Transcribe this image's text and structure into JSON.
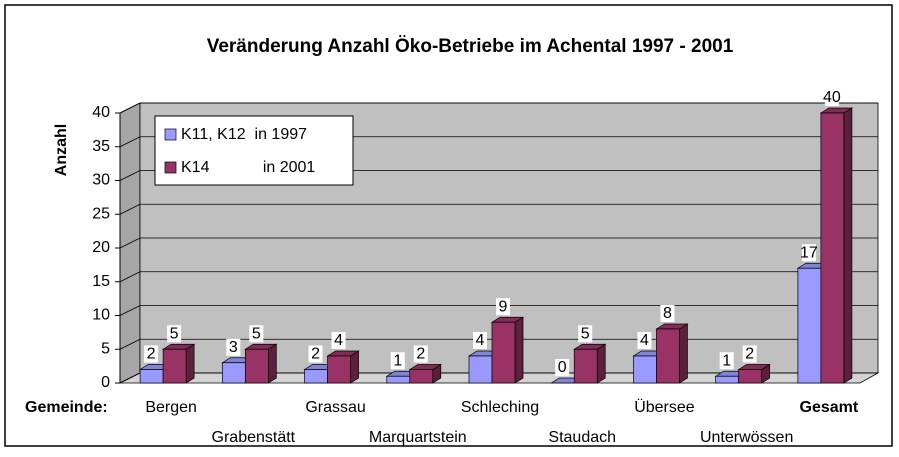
{
  "chart_data": {
    "type": "bar3d",
    "title": "Veränderung Anzahl Öko-Betriebe im Achental 1997 - 2001",
    "y_label": "Anzahl",
    "x_label": "Gemeinde:",
    "categories": [
      "Bergen",
      "Grabenstätt",
      "Grassau",
      "Marquartstein",
      "Schleching",
      "Staudach",
      "Übersee",
      "Unterwössen",
      "Gesamt"
    ],
    "series": [
      {
        "name": "K11, K12  in 1997",
        "color": "#9999ff",
        "values": [
          2,
          3,
          2,
          1,
          4,
          0,
          4,
          1,
          17
        ]
      },
      {
        "name": "K14            in 2001",
        "color": "#993366",
        "values": [
          5,
          5,
          4,
          2,
          9,
          5,
          8,
          2,
          40
        ]
      }
    ],
    "ylim": [
      0,
      40
    ],
    "yticks": [
      0,
      5,
      10,
      15,
      20,
      25,
      30,
      35,
      40
    ],
    "grid": true,
    "legend": "upper left"
  }
}
